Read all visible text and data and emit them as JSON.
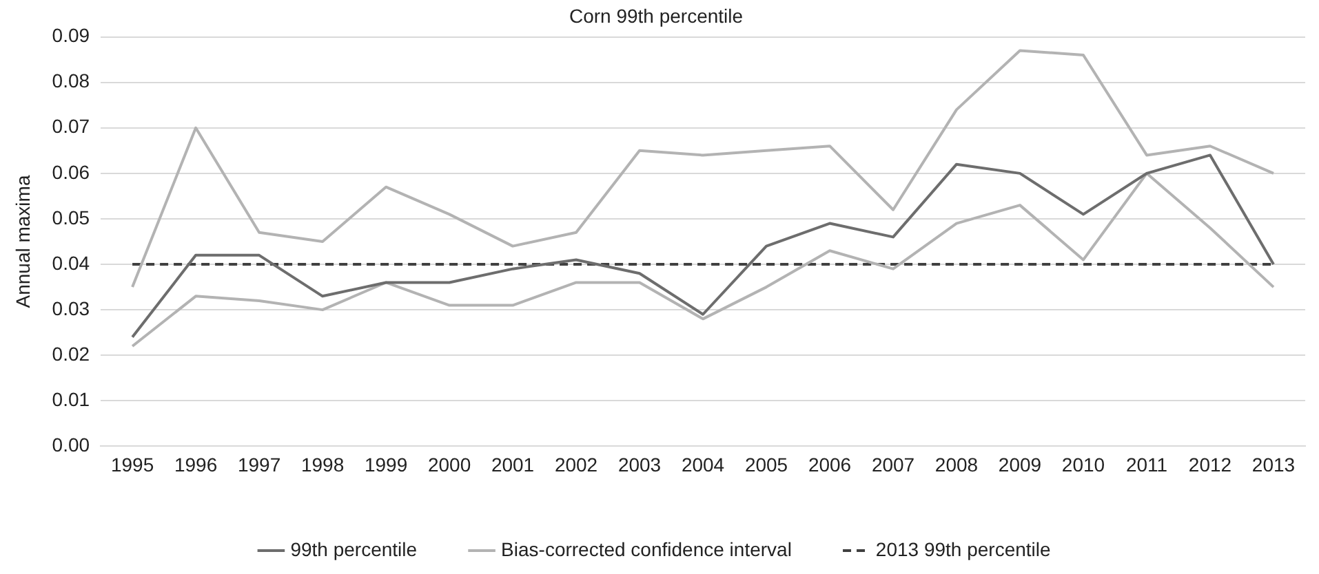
{
  "chart_data": {
    "type": "line",
    "title": "Corn 99th percentile",
    "ylabel": "Annual maxima",
    "categories": [
      "1995",
      "1996",
      "1997",
      "1998",
      "1999",
      "2000",
      "2001",
      "2002",
      "2003",
      "2004",
      "2005",
      "2006",
      "2007",
      "2008",
      "2009",
      "2010",
      "2011",
      "2012",
      "2013"
    ],
    "series": [
      {
        "name": "99th percentile",
        "color": "#6d6d6d",
        "values": [
          0.024,
          0.042,
          0.042,
          0.033,
          0.036,
          0.036,
          0.039,
          0.041,
          0.038,
          0.029,
          0.044,
          0.049,
          0.046,
          0.062,
          0.06,
          0.051,
          0.06,
          0.064,
          0.04
        ]
      },
      {
        "name": "Bias-corrected confidence interval",
        "color": "#b3b3b3",
        "values": [
          0.035,
          0.07,
          0.047,
          0.045,
          0.057,
          0.051,
          0.044,
          0.047,
          0.065,
          0.064,
          0.065,
          0.066,
          0.052,
          0.074,
          0.087,
          0.086,
          0.064,
          0.066,
          0.06
        ]
      },
      {
        "color": "#b3b3b3",
        "values": [
          0.022,
          0.033,
          0.032,
          0.03,
          0.036,
          0.031,
          0.031,
          0.036,
          0.036,
          0.028,
          0.035,
          0.043,
          0.039,
          0.049,
          0.053,
          0.041,
          0.06,
          0.048,
          0.035
        ]
      },
      {
        "name": "2013 99th percentile",
        "color": "#404040",
        "line_style": "dashed",
        "values": [
          0.04,
          0.04,
          0.04,
          0.04,
          0.04,
          0.04,
          0.04,
          0.04,
          0.04,
          0.04,
          0.04,
          0.04,
          0.04,
          0.04,
          0.04,
          0.04,
          0.04,
          0.04,
          0.04
        ]
      }
    ],
    "ylim": [
      0,
      0.09
    ],
    "yticks": [
      {
        "value": 0,
        "label": "0.00"
      },
      {
        "value": 0.01,
        "label": "0.01"
      },
      {
        "value": 0.02,
        "label": "0.02"
      },
      {
        "value": 0.03,
        "label": "0.03"
      },
      {
        "value": 0.04,
        "label": "0.04"
      },
      {
        "value": 0.05,
        "label": "0.05"
      },
      {
        "value": 0.06,
        "label": "0.06"
      },
      {
        "value": 0.07,
        "label": "0.07"
      },
      {
        "value": 0.08,
        "label": "0.08"
      },
      {
        "value": 0.09,
        "label": "0.09"
      }
    ],
    "grid": "y",
    "legend": "bottom",
    "marker": "none"
  }
}
